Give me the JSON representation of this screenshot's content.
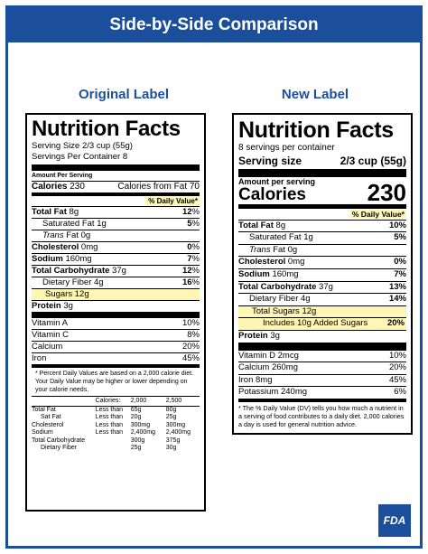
{
  "banner": "Side-by-Side Comparison",
  "titles": {
    "original": "Original Label",
    "new": "New Label"
  },
  "original": {
    "heading": "Nutrition Facts",
    "serving_size": "Serving Size 2/3 cup (55g)",
    "servings_per_container": "Servings Per Container 8",
    "amount_per_serving": "Amount Per Serving",
    "calories_label": "Calories",
    "calories_value": "230",
    "calories_from_fat": "Calories from Fat 70",
    "dv_header": "% Daily Value*",
    "rows": [
      {
        "label": "Total Fat",
        "amount": " 8g",
        "dv": "12",
        "bold": true,
        "indent": 0,
        "hl": false
      },
      {
        "label": "Saturated Fat",
        "amount": " 1g",
        "dv": "5",
        "bold": false,
        "indent": 1,
        "hl": false
      },
      {
        "label": "Trans",
        "amount": " Fat 0g",
        "dv": "",
        "bold": false,
        "indent": 1,
        "hl": false,
        "italic_label": true
      },
      {
        "label": "Cholesterol",
        "amount": " 0mg",
        "dv": "0",
        "bold": true,
        "indent": 0,
        "hl": false
      },
      {
        "label": "Sodium",
        "amount": " 160mg",
        "dv": "7",
        "bold": true,
        "indent": 0,
        "hl": false
      },
      {
        "label": "Total Carbohydrate",
        "amount": " 37g",
        "dv": "12",
        "bold": true,
        "indent": 0,
        "hl": false
      },
      {
        "label": "Dietary Fiber",
        "amount": " 4g",
        "dv": "16",
        "bold": false,
        "indent": 1,
        "hl": false
      },
      {
        "label": "Sugars",
        "amount": " 12g",
        "dv": "",
        "bold": false,
        "indent": 1,
        "hl": true
      },
      {
        "label": "Protein",
        "amount": " 3g",
        "dv": "",
        "bold": true,
        "indent": 0,
        "hl": false
      }
    ],
    "vitamins": [
      {
        "label": "Vitamin A",
        "dv": "10%"
      },
      {
        "label": "Vitamin C",
        "dv": "8%"
      },
      {
        "label": "Calcium",
        "dv": "20%"
      },
      {
        "label": "Iron",
        "dv": "45%"
      }
    ],
    "footnote": "* Percent Daily Values are based on a 2,000 calorie diet. Your Daily Value may be higher or lower depending on your calorie needs.",
    "dv_table": {
      "header": [
        "",
        "Calories:",
        "2,000",
        "2,500"
      ],
      "rows": [
        [
          "Total Fat",
          "Less than",
          "65g",
          "80g"
        ],
        [
          "Sat Fat",
          "Less than",
          "20g",
          "25g"
        ],
        [
          "Cholesterol",
          "Less than",
          "300mg",
          "300mg"
        ],
        [
          "Sodium",
          "Less than",
          "2,400mg",
          "2,400mg"
        ],
        [
          "Total Carbohydrate",
          "",
          "300g",
          "375g"
        ],
        [
          "Dietary Fiber",
          "",
          "25g",
          "30g"
        ]
      ]
    }
  },
  "new": {
    "heading": "Nutrition Facts",
    "servings_per_container": "8 servings per container",
    "serving_size_label": "Serving size",
    "serving_size_value": "2/3 cup (55g)",
    "amount_per_serving": "Amount per serving",
    "calories_label": "Calories",
    "calories_value": "230",
    "dv_header": "% Daily Value*",
    "rows": [
      {
        "label": "Total Fat",
        "amount": " 8g",
        "dv": "10%",
        "bold": true,
        "indent": 0,
        "hl": false
      },
      {
        "label": "Saturated Fat",
        "amount": " 1g",
        "dv": "5%",
        "bold": false,
        "indent": 1,
        "hl": false
      },
      {
        "label": "Trans",
        "amount": " Fat 0g",
        "dv": "",
        "bold": false,
        "indent": 1,
        "hl": false,
        "italic_label": true
      },
      {
        "label": "Cholesterol",
        "amount": " 0mg",
        "dv": "0%",
        "bold": true,
        "indent": 0,
        "hl": false
      },
      {
        "label": "Sodium",
        "amount": " 160mg",
        "dv": "7%",
        "bold": true,
        "indent": 0,
        "hl": false
      },
      {
        "label": "Total Carbohydrate",
        "amount": " 37g",
        "dv": "13%",
        "bold": true,
        "indent": 0,
        "hl": false
      },
      {
        "label": "Dietary Fiber",
        "amount": " 4g",
        "dv": "14%",
        "bold": false,
        "indent": 1,
        "hl": false
      },
      {
        "label": "Total Sugars",
        "amount": " 12g",
        "dv": "",
        "bold": false,
        "indent": 1,
        "hl": true
      },
      {
        "label": "Includes 10g Added Sugars",
        "amount": "",
        "dv": "20%",
        "bold": false,
        "indent": 2,
        "hl": true
      },
      {
        "label": "Protein",
        "amount": " 3g",
        "dv": "",
        "bold": true,
        "indent": 0,
        "hl": false
      }
    ],
    "vitamins": [
      {
        "label": "Vitamin D 2mcg",
        "dv": "10%"
      },
      {
        "label": "Calcium 260mg",
        "dv": "20%"
      },
      {
        "label": "Iron 8mg",
        "dv": "45%"
      },
      {
        "label": "Potassium 240mg",
        "dv": "6%"
      }
    ],
    "footnote": "* The % Daily Value (DV) tells you how much a nutrient in a serving of food contributes to a daily diet. 2,000 calories a day is used for general nutrition advice."
  },
  "logo": "FDA",
  "colors": {
    "brand": "#1b4f9c",
    "highlight": "#fdf6b4"
  }
}
